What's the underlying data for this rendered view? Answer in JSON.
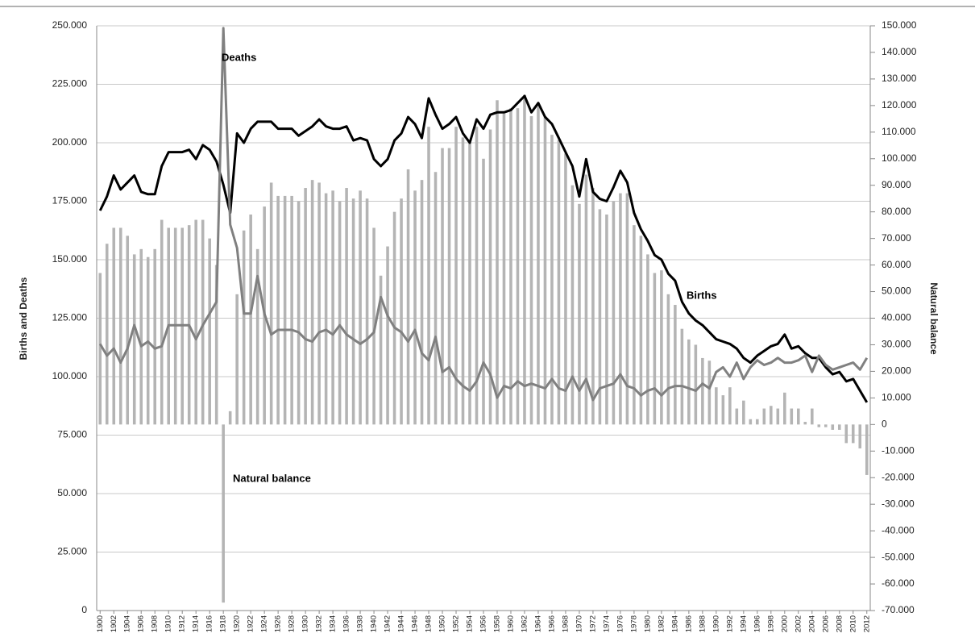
{
  "chart_data": {
    "type": "combo",
    "y_label": "Births and Deaths",
    "y2_label": "Natural balance",
    "annotations": [
      "Deaths",
      "Births",
      "Natural balance"
    ],
    "x": [
      1900,
      1901,
      1902,
      1903,
      1904,
      1905,
      1906,
      1907,
      1908,
      1909,
      1910,
      1911,
      1912,
      1913,
      1914,
      1915,
      1916,
      1917,
      1918,
      1919,
      1920,
      1921,
      1922,
      1923,
      1924,
      1925,
      1926,
      1927,
      1928,
      1929,
      1930,
      1931,
      1932,
      1933,
      1934,
      1935,
      1936,
      1937,
      1938,
      1939,
      1940,
      1941,
      1942,
      1943,
      1944,
      1945,
      1946,
      1947,
      1948,
      1949,
      1950,
      1951,
      1952,
      1953,
      1954,
      1955,
      1956,
      1957,
      1958,
      1959,
      1960,
      1961,
      1962,
      1963,
      1964,
      1965,
      1966,
      1967,
      1968,
      1969,
      1970,
      1971,
      1972,
      1973,
      1974,
      1975,
      1976,
      1977,
      1978,
      1979,
      1980,
      1981,
      1982,
      1983,
      1984,
      1985,
      1986,
      1987,
      1988,
      1989,
      1990,
      1991,
      1992,
      1993,
      1994,
      1995,
      1996,
      1997,
      1998,
      1999,
      2000,
      2001,
      2002,
      2003,
      2004,
      2005,
      2006,
      2007,
      2008,
      2009,
      2010,
      2011,
      2012
    ],
    "xlim": [
      1899.5,
      2012.5
    ],
    "xticks": [
      1900,
      1902,
      1904,
      1906,
      1908,
      1910,
      1912,
      1914,
      1916,
      1918,
      1920,
      1922,
      1924,
      1926,
      1928,
      1930,
      1932,
      1934,
      1936,
      1938,
      1940,
      1942,
      1944,
      1946,
      1948,
      1950,
      1952,
      1954,
      1956,
      1958,
      1960,
      1962,
      1964,
      1966,
      1968,
      1970,
      1972,
      1974,
      1976,
      1978,
      1980,
      1982,
      1984,
      1986,
      1988,
      1990,
      1992,
      1994,
      1996,
      1998,
      2000,
      2002,
      2004,
      2006,
      2008,
      2010,
      2012
    ],
    "ylim": [
      0,
      250000
    ],
    "yticks": [
      0,
      {
        "value": 25000,
        "label": "25.000"
      },
      {
        "value": 50000,
        "label": "50.000"
      },
      {
        "value": 75000,
        "label": "75.000"
      },
      {
        "value": 100000,
        "label": "100.000"
      },
      {
        "value": 125000,
        "label": "125.000"
      },
      {
        "value": 150000,
        "label": "150.000"
      },
      {
        "value": 175000,
        "label": "175.000"
      },
      {
        "value": 200000,
        "label": "200.000"
      },
      {
        "value": 225000,
        "label": "225.000"
      },
      {
        "value": 250000,
        "label": "250.000"
      }
    ],
    "y2lim": [
      -70000,
      150000
    ],
    "y2ticks": [
      {
        "value": -70000,
        "label": "-70.000"
      },
      {
        "value": -60000,
        "label": "-60.000"
      },
      {
        "value": -50000,
        "label": "-50.000"
      },
      {
        "value": -40000,
        "label": "-40.000"
      },
      {
        "value": -30000,
        "label": "-30.000"
      },
      {
        "value": -20000,
        "label": "-20.000"
      },
      {
        "value": -10000,
        "label": "-10.000"
      },
      0,
      {
        "value": 10000,
        "label": "10.000"
      },
      {
        "value": 20000,
        "label": "20.000"
      },
      {
        "value": 30000,
        "label": "30.000"
      },
      {
        "value": 40000,
        "label": "40.000"
      },
      {
        "value": 50000,
        "label": "50.000"
      },
      {
        "value": 60000,
        "label": "60.000"
      },
      {
        "value": 70000,
        "label": "70.000"
      },
      {
        "value": 80000,
        "label": "80.000"
      },
      {
        "value": 90000,
        "label": "90.000"
      },
      {
        "value": 100000,
        "label": "100.000"
      },
      {
        "value": 110000,
        "label": "110.000"
      },
      {
        "value": 120000,
        "label": "120.000"
      },
      {
        "value": 130000,
        "label": "130.000"
      },
      {
        "value": 140000,
        "label": "140.000"
      },
      {
        "value": 150000,
        "label": "150.000"
      }
    ],
    "grid": true,
    "series": [
      {
        "name": "Natural balance",
        "type": "bar",
        "axis": "y2",
        "color": "#b4b4b4",
        "values": [
          57000,
          68000,
          74000,
          74000,
          71000,
          64000,
          66000,
          63000,
          66000,
          77000,
          74000,
          74000,
          74000,
          75000,
          77000,
          77000,
          70000,
          60000,
          -67000,
          5000,
          49000,
          73000,
          79000,
          66000,
          82000,
          91000,
          86000,
          86000,
          86000,
          84000,
          89000,
          92000,
          91000,
          87000,
          88000,
          84000,
          89000,
          85000,
          88000,
          85000,
          74000,
          56000,
          67000,
          80000,
          85000,
          96000,
          88000,
          92000,
          112000,
          95000,
          104000,
          104000,
          112000,
          108000,
          106000,
          112000,
          100000,
          111000,
          122000,
          117000,
          119000,
          119000,
          124000,
          116000,
          121000,
          116000,
          109000,
          107000,
          102000,
          90000,
          83000,
          94000,
          89000,
          81000,
          79000,
          84000,
          87000,
          87000,
          75000,
          71000,
          64000,
          57000,
          58000,
          49000,
          45000,
          36000,
          32000,
          30000,
          25000,
          24000,
          14000,
          11000,
          14000,
          6000,
          9000,
          2000,
          2000,
          6000,
          7000,
          6000,
          12000,
          6000,
          6000,
          1000,
          6000,
          -1000,
          -1000,
          -2000,
          -2000,
          -7000,
          -7000,
          -9000,
          -19000
        ]
      },
      {
        "name": "Births",
        "type": "line",
        "color": "#000000",
        "values": [
          171000,
          177000,
          186000,
          180000,
          183000,
          186000,
          179000,
          178000,
          178000,
          190000,
          196000,
          196000,
          196000,
          197000,
          193000,
          199000,
          197000,
          192000,
          182000,
          170000,
          204000,
          200000,
          206000,
          209000,
          209000,
          209000,
          206000,
          206000,
          206000,
          203000,
          205000,
          207000,
          210000,
          207000,
          206000,
          206000,
          207000,
          201000,
          202000,
          201000,
          193000,
          190000,
          193000,
          201000,
          204000,
          211000,
          208000,
          202000,
          219000,
          212000,
          206000,
          208000,
          211000,
          204000,
          200000,
          210000,
          206000,
          212000,
          213000,
          213000,
          214000,
          217000,
          220000,
          213000,
          217000,
          211000,
          208000,
          202000,
          196000,
          190000,
          177000,
          193000,
          179000,
          176000,
          175000,
          181000,
          188000,
          183000,
          170000,
          163000,
          158000,
          152000,
          150000,
          144000,
          141000,
          132000,
          127000,
          124000,
          122000,
          119000,
          116000,
          115000,
          114000,
          112000,
          108000,
          106000,
          109000,
          111000,
          113000,
          114000,
          118000,
          112000,
          113000,
          110000,
          108000,
          108000,
          104000,
          101000,
          102000,
          98000,
          99000,
          94000,
          89000
        ]
      },
      {
        "name": "Deaths",
        "type": "line",
        "color": "#808080",
        "values": [
          114000,
          109000,
          112000,
          106000,
          112000,
          122000,
          113000,
          115000,
          112000,
          113000,
          122000,
          122000,
          122000,
          122000,
          116000,
          122000,
          127000,
          132000,
          249000,
          165000,
          155000,
          127000,
          127000,
          143000,
          127000,
          118000,
          120000,
          120000,
          120000,
          119000,
          116000,
          115000,
          119000,
          120000,
          118000,
          122000,
          118000,
          116000,
          114000,
          116000,
          119000,
          134000,
          126000,
          121000,
          119000,
          115000,
          120000,
          110000,
          107000,
          117000,
          102000,
          104000,
          99000,
          96000,
          94000,
          98000,
          106000,
          101000,
          91000,
          96000,
          95000,
          98000,
          96000,
          97000,
          96000,
          95000,
          99000,
          95000,
          94000,
          100000,
          94000,
          99000,
          90000,
          95000,
          96000,
          97000,
          101000,
          96000,
          95000,
          92000,
          94000,
          95000,
          92000,
          95000,
          96000,
          96000,
          95000,
          94000,
          97000,
          95000,
          102000,
          104000,
          100000,
          106000,
          99000,
          104000,
          107000,
          105000,
          106000,
          108000,
          106000,
          106000,
          107000,
          109000,
          102000,
          109000,
          105000,
          103000,
          104000,
          105000,
          106000,
          103000,
          108000
        ]
      }
    ]
  }
}
